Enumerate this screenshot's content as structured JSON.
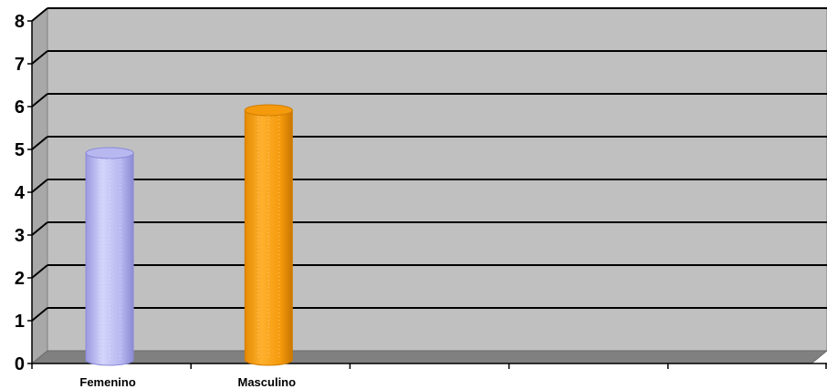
{
  "chart_data": {
    "type": "bar",
    "style": "3d-cylinder",
    "categories": [
      "Femenino",
      "Masculino",
      "",
      "",
      ""
    ],
    "values": [
      5,
      6,
      null,
      null,
      null
    ],
    "bar_colors": [
      "#b8b8f0",
      "#f59a0c"
    ],
    "ylim": [
      0,
      8
    ],
    "yticks": [
      "0",
      "1",
      "2",
      "3",
      "4",
      "5",
      "6",
      "7",
      "8"
    ],
    "grid": true,
    "legend": "none",
    "wall_color": "#c0c0c0",
    "floor_color": "#808080"
  }
}
